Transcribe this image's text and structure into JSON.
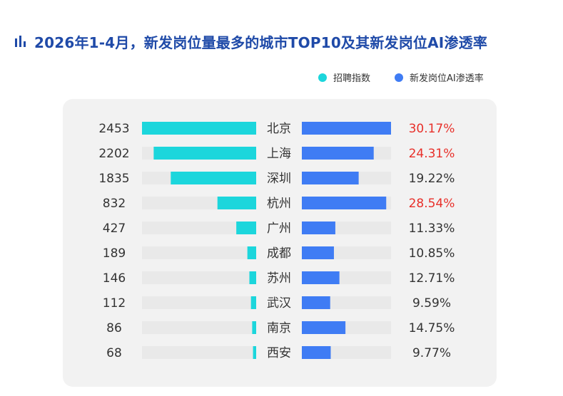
{
  "header": {
    "title": "2026年1-4月，新发岗位量最多的城市TOP10及其新发岗位AI渗透率"
  },
  "colors": {
    "title": "#1f4aa8",
    "index_bar": "#1cd6dc",
    "ai_bar": "#3f7cf4",
    "track": "#e9e9e9",
    "highlight_text": "#e8302a",
    "normal_text": "#333333"
  },
  "icons": {
    "title_icon": "bar-chart-icon"
  },
  "legend": [
    {
      "label": "招聘指数",
      "color": "#1cd6dc"
    },
    {
      "label": "新发岗位AI渗透率",
      "color": "#3f7cf4"
    }
  ],
  "chart_data": {
    "type": "bar",
    "orientation": "horizontal-butterfly",
    "categories": [
      "北京",
      "上海",
      "深圳",
      "杭州",
      "广州",
      "成都",
      "苏州",
      "武汉",
      "南京",
      "西安"
    ],
    "series": [
      {
        "name": "招聘指数",
        "values": [
          2453,
          2202,
          1835,
          832,
          427,
          189,
          146,
          112,
          86,
          68
        ],
        "xlim": [
          0,
          2453
        ]
      },
      {
        "name": "新发岗位AI渗透率",
        "values": [
          30.17,
          24.31,
          19.22,
          28.54,
          11.33,
          10.85,
          12.71,
          9.59,
          14.75,
          9.77
        ],
        "value_labels": [
          "30.17%",
          "24.31%",
          "19.22%",
          "28.54%",
          "11.33%",
          "10.85%",
          "12.71%",
          "9.59%",
          "14.75%",
          "9.77%"
        ],
        "xlim": [
          0,
          30.17
        ]
      }
    ],
    "highlighted": [
      "北京",
      "上海",
      "杭州"
    ]
  }
}
